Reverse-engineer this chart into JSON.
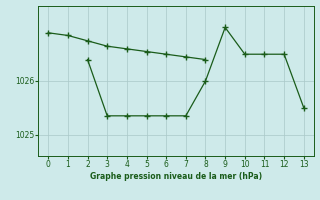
{
  "xlabel": "Graphe pression niveau de la mer (hPa)",
  "background_color": "#ceeaea",
  "line_color": "#1a5c1a",
  "grid_color": "#aac8c8",
  "xlim": [
    -0.5,
    13.5
  ],
  "ylim": [
    1024.6,
    1027.4
  ],
  "xticks": [
    0,
    1,
    2,
    3,
    4,
    5,
    6,
    7,
    8,
    9,
    10,
    11,
    12,
    13
  ],
  "yticks": [
    1025,
    1026
  ],
  "series1_x": [
    0,
    1,
    2,
    3,
    4,
    5,
    6,
    7,
    8
  ],
  "series1_y": [
    1026.9,
    1026.85,
    1026.75,
    1026.65,
    1026.6,
    1026.55,
    1026.5,
    1026.45,
    1026.4
  ],
  "series2_x": [
    2,
    3,
    4,
    5,
    6,
    7,
    8,
    9,
    10,
    11,
    12,
    13
  ],
  "series2_y": [
    1026.4,
    1025.35,
    1025.35,
    1025.35,
    1025.35,
    1025.35,
    1026.0,
    1027.0,
    1026.5,
    1026.5,
    1026.5,
    1025.5
  ]
}
